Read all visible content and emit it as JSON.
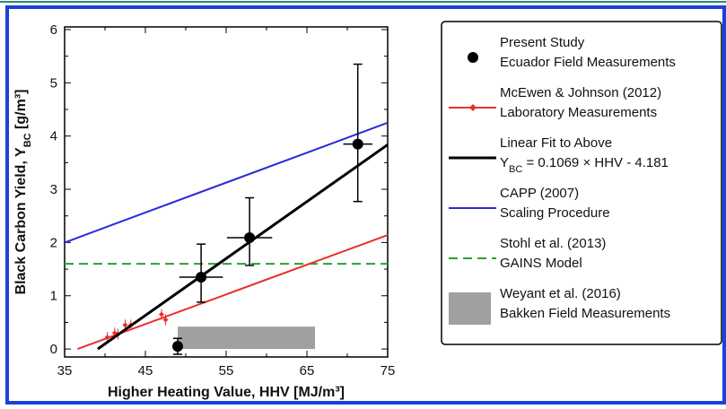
{
  "chart_data": {
    "type": "scatter",
    "x_label": "Higher Heating Value, HHV [MJ/m³]",
    "y_label_parts": [
      "Black Carbon Yield, Y",
      "BC",
      " [g/m³]"
    ],
    "xlim": [
      35,
      75
    ],
    "xticks": [
      35,
      45,
      55,
      65,
      75
    ],
    "xminor": [
      40,
      50,
      60,
      70
    ],
    "ylim": [
      -0.15,
      6.05
    ],
    "yticks": [
      0,
      1,
      2,
      3,
      4,
      5,
      6
    ],
    "yminor": [
      0.5,
      1.5,
      2.5,
      3.5,
      4.5,
      5.5
    ],
    "series": [
      {
        "name": "Present Study",
        "description_parts": [
          "Ecuador Field Measurements"
        ],
        "style": "points",
        "color": "#000000",
        "x": [
          49,
          51.9,
          57.9,
          71.3
        ],
        "values": [
          0.05,
          1.35,
          2.09,
          3.85
        ],
        "xerr": [
          0,
          2.7,
          2.8,
          1.8
        ],
        "y_low": [
          -0.1,
          0.88,
          1.57,
          2.77
        ],
        "y_high": [
          0.2,
          1.97,
          2.84,
          5.35
        ]
      },
      {
        "name": "McEwen & Johnson (2012)",
        "description_parts": [
          "Laboratory Measurements"
        ],
        "style": "points-line",
        "color": "#e8312f",
        "x": [
          40.3,
          41.2,
          41.6,
          42.5,
          43.2,
          47,
          47.5
        ],
        "values": [
          0.22,
          0.3,
          0.28,
          0.45,
          0.45,
          0.65,
          0.55
        ],
        "line_x": [
          36.6,
          75
        ],
        "line_values": [
          0,
          2.14
        ]
      },
      {
        "name": "Linear Fit to Above",
        "description_parts": [
          "Y",
          "BC",
          " = 0.1069 × HHV - 4.181"
        ],
        "style": "line",
        "color": "#000000",
        "line_x": [
          39.1,
          75
        ],
        "line_values": [
          0,
          3.837
        ]
      },
      {
        "name": "CAPP (2007)",
        "description_parts": [
          "Scaling Procedure"
        ],
        "style": "line",
        "color": "#2b2bd9",
        "line_x": [
          35,
          75
        ],
        "line_values": [
          2.0,
          4.25
        ]
      },
      {
        "name": "Stohl et al. (2013)",
        "description_parts": [
          "GAINS Model"
        ],
        "style": "dashed",
        "color": "#2ca02c",
        "line_x": [
          35,
          75
        ],
        "line_values": [
          1.6,
          1.6
        ]
      },
      {
        "name": "Weyant et al. (2016)",
        "description_parts": [
          "Bakken Field Measurements"
        ],
        "style": "band",
        "color": "#a0a0a0",
        "x": [
          49,
          66
        ],
        "values": [
          0,
          0.42
        ]
      }
    ]
  }
}
